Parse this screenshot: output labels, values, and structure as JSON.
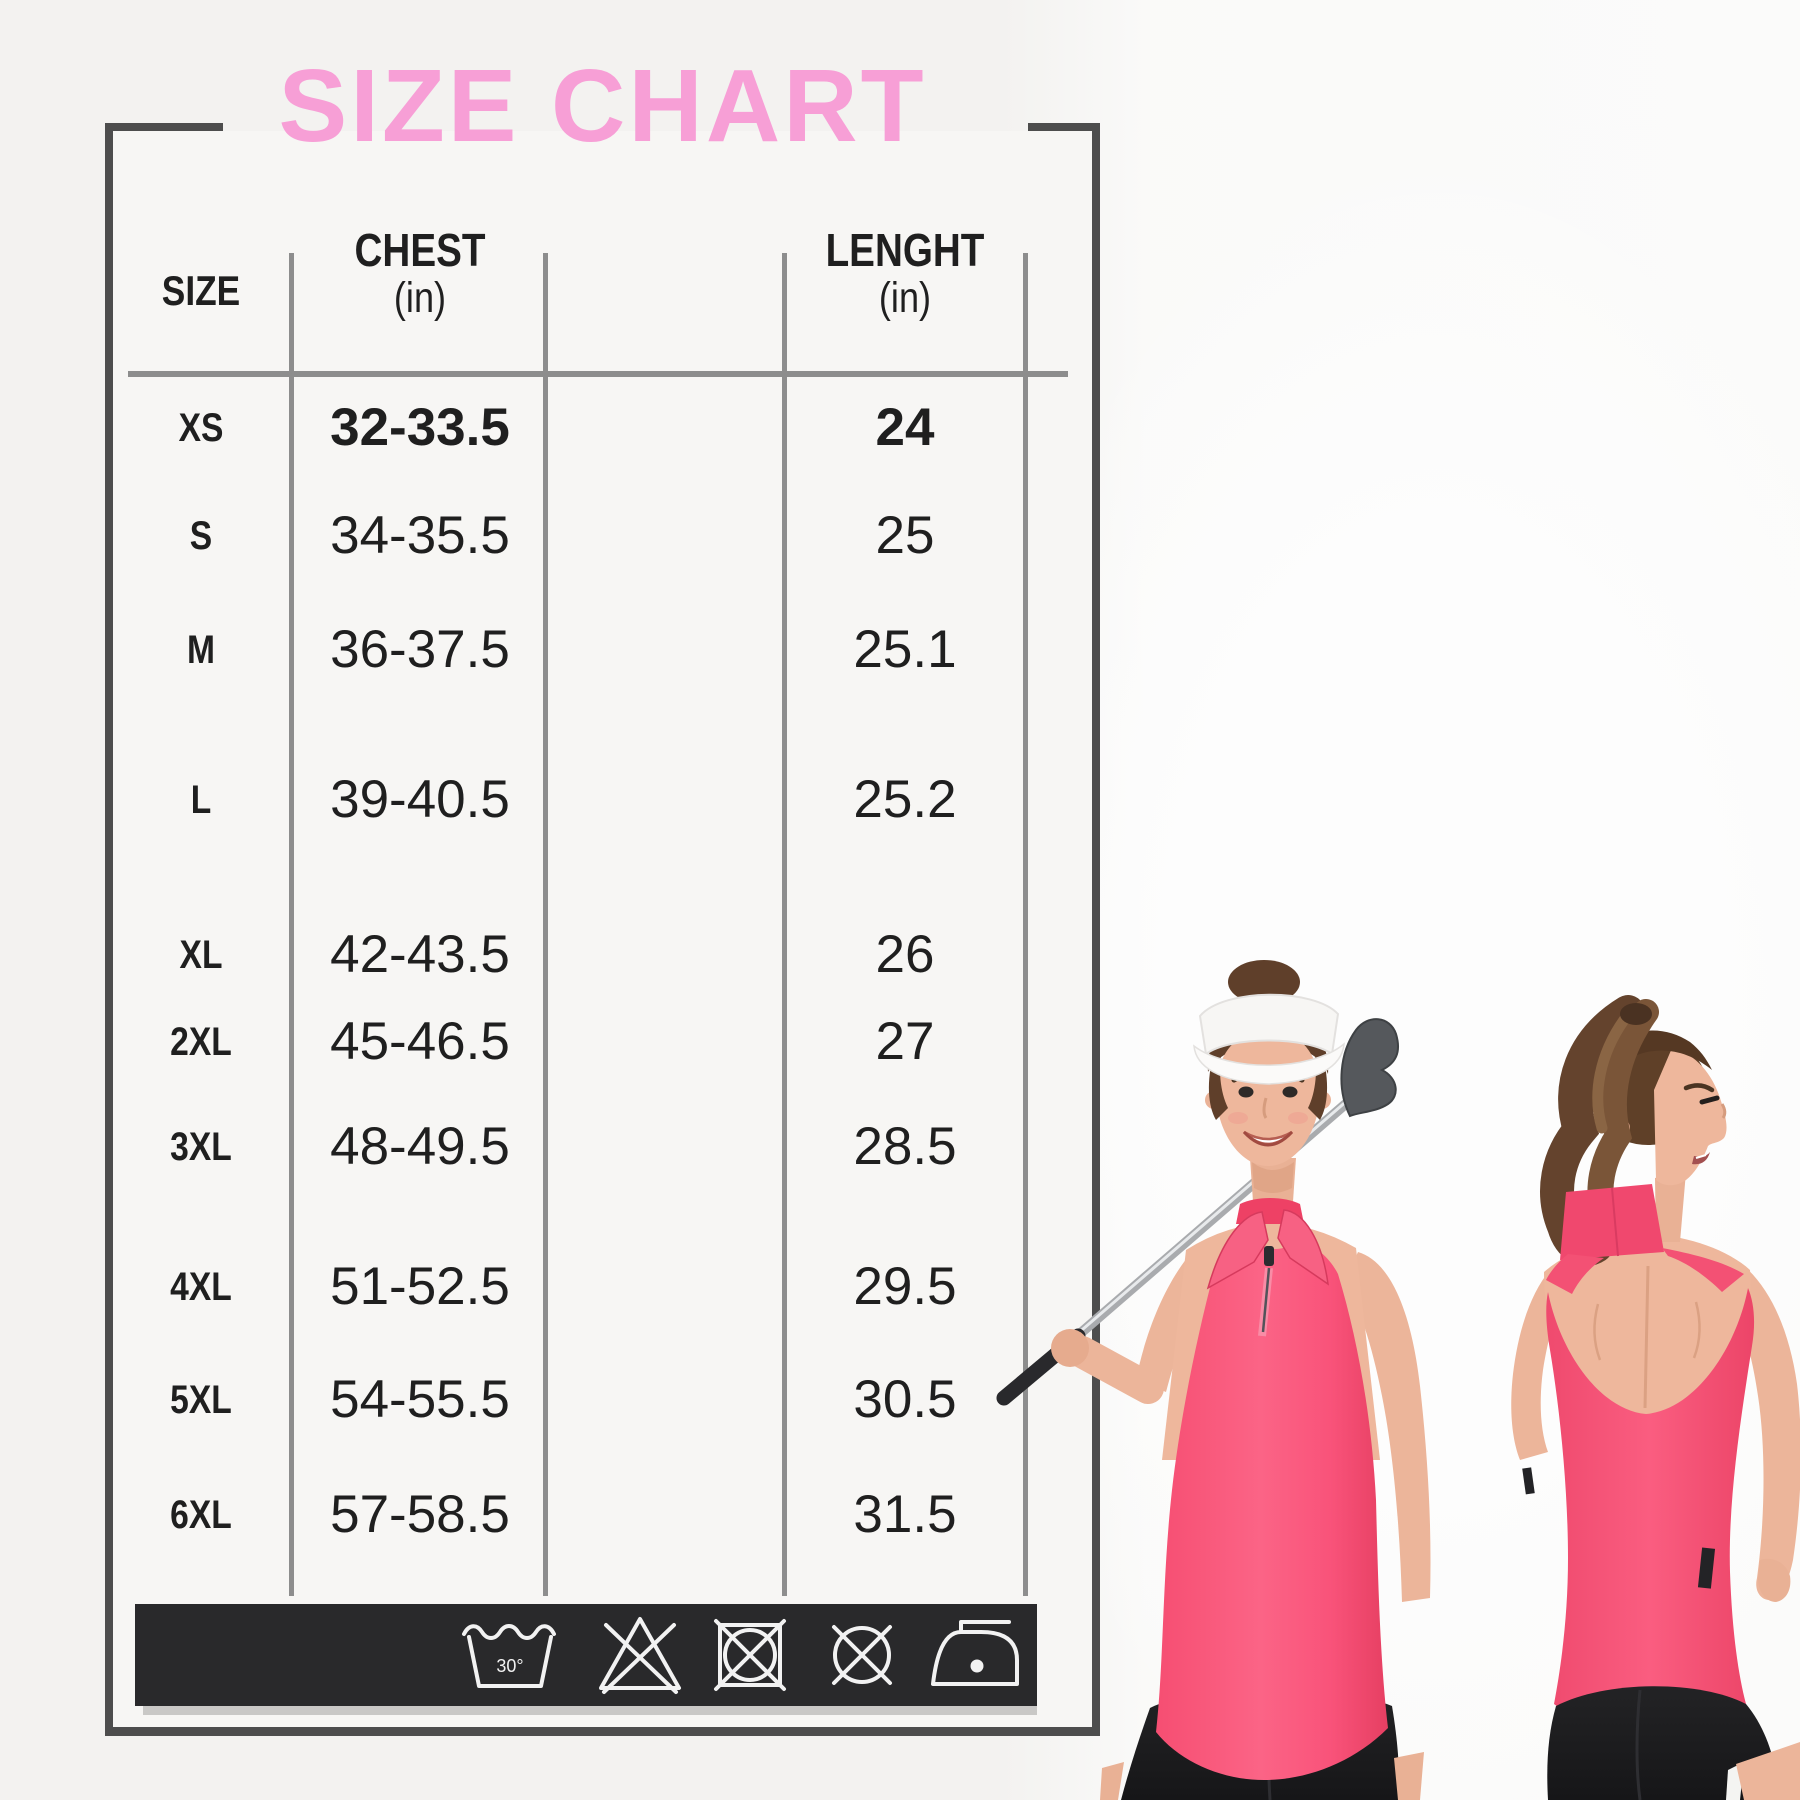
{
  "title": {
    "text": "SIZE CHART",
    "color": "#f79fd6"
  },
  "chart_data": {
    "type": "table",
    "title": "SIZE CHART",
    "columns": [
      {
        "label": "SIZE",
        "unit": ""
      },
      {
        "label": "CHEST",
        "unit": "(in)"
      },
      {
        "label": "",
        "unit": ""
      },
      {
        "label": "LENGHT",
        "unit": "(in)"
      }
    ],
    "rows": [
      {
        "size": "XS",
        "chest": "32-33.5",
        "length": "24",
        "emphasis": true
      },
      {
        "size": "S",
        "chest": "34-35.5",
        "length": "25",
        "emphasis": false
      },
      {
        "size": "M",
        "chest": "36-37.5",
        "length": "25.1",
        "emphasis": false
      },
      {
        "size": "L",
        "chest": "39-40.5",
        "length": "25.2",
        "emphasis": false
      },
      {
        "size": "XL",
        "chest": "42-43.5",
        "length": "26",
        "emphasis": false
      },
      {
        "size": "2XL",
        "chest": "45-46.5",
        "length": "27",
        "emphasis": false
      },
      {
        "size": "3XL",
        "chest": "48-49.5",
        "length": "28.5",
        "emphasis": false
      },
      {
        "size": "4XL",
        "chest": "51-52.5",
        "length": "29.5",
        "emphasis": false
      },
      {
        "size": "5XL",
        "chest": "54-55.5",
        "length": "30.5",
        "emphasis": false
      },
      {
        "size": "6XL",
        "chest": "57-58.5",
        "length": "31.5",
        "emphasis": false
      }
    ]
  },
  "care": {
    "wash_temp_label": "30°",
    "symbols": [
      "machine-wash-30",
      "do-not-bleach",
      "do-not-tumble-dry",
      "do-not-dry-clean",
      "iron-low-heat"
    ],
    "bar_color": "#29292b"
  },
  "colors": {
    "title_pink": "#f79fd6",
    "table_text": "#1f1f1f",
    "grid_line": "#8d8d8d",
    "frame_border": "#4d4d4d",
    "shirt_pink": "#f9587c",
    "shorts_black": "#1b1b1d",
    "visor_white": "#f7f6f4"
  }
}
